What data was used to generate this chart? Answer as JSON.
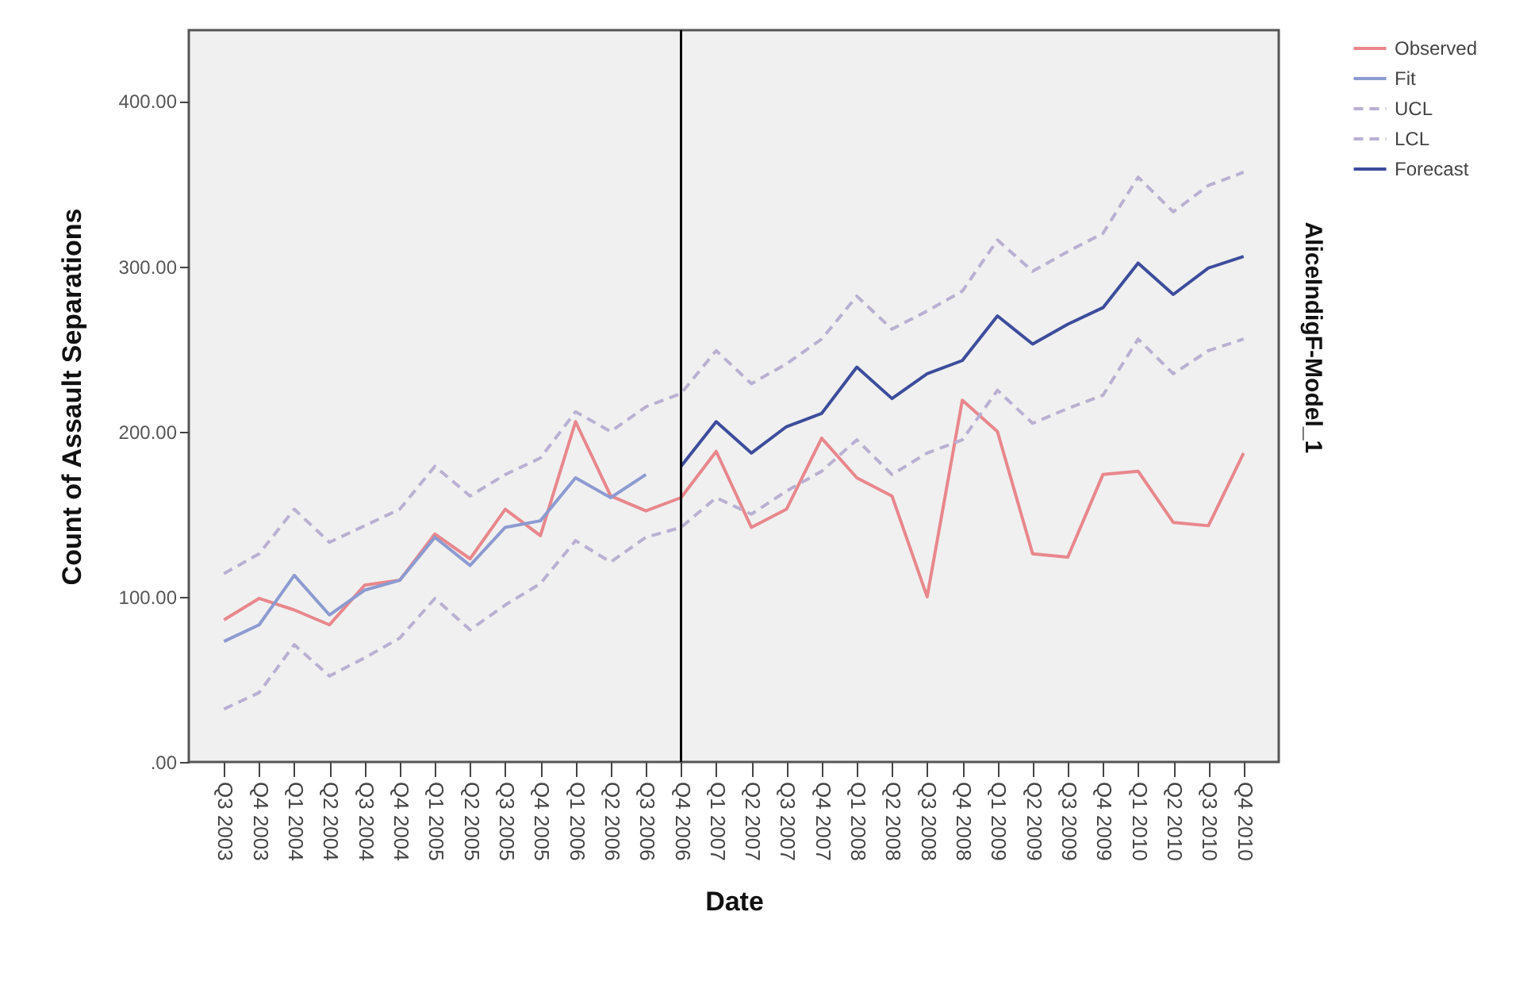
{
  "chart_data": {
    "type": "line",
    "xlabel": "Date",
    "ylabel": "Count of Assault Separations",
    "categories": [
      "Q3 2003",
      "Q4 2003",
      "Q1 2004",
      "Q2 2004",
      "Q3 2004",
      "Q4 2004",
      "Q1 2005",
      "Q2 2005",
      "Q3 2005",
      "Q4 2005",
      "Q1 2006",
      "Q2 2006",
      "Q3 2006",
      "Q4 2006",
      "Q1 2007",
      "Q2 2007",
      "Q3 2007",
      "Q4 2007",
      "Q1 2008",
      "Q2 2008",
      "Q3 2008",
      "Q4 2008",
      "Q1 2009",
      "Q2 2009",
      "Q3 2009",
      "Q4 2009",
      "Q1 2010",
      "Q2 2010",
      "Q3 2010",
      "Q4 2010"
    ],
    "series": [
      {
        "name": "Observed",
        "color": "#e8878c",
        "line_style": "solid",
        "values": [
          86,
          99,
          92,
          83,
          107,
          110,
          138,
          123,
          153,
          137,
          206,
          161,
          152,
          160,
          188,
          142,
          153,
          196,
          172,
          161,
          100,
          219,
          200,
          126,
          124,
          174,
          176,
          145,
          143,
          187
        ]
      },
      {
        "name": "Fit",
        "color": "#8c9bd0",
        "line_style": "solid",
        "values": [
          73,
          83,
          113,
          89,
          104,
          110,
          136,
          119,
          142,
          146,
          172,
          160,
          174,
          null,
          null,
          null,
          null,
          null,
          null,
          null,
          null,
          null,
          null,
          null,
          null,
          null,
          null,
          null,
          null,
          null
        ]
      },
      {
        "name": "UCL",
        "color": "#b9b0d2",
        "line_style": "dashed",
        "values": [
          114,
          126,
          153,
          133,
          143,
          153,
          179,
          161,
          174,
          184,
          212,
          200,
          215,
          223,
          249,
          229,
          241,
          256,
          282,
          262,
          273,
          285,
          316,
          297,
          309,
          320,
          354,
          333,
          349,
          357
        ]
      },
      {
        "name": "LCL",
        "color": "#b9b0d2",
        "line_style": "dashed",
        "values": [
          32,
          42,
          71,
          52,
          63,
          75,
          99,
          80,
          95,
          108,
          134,
          121,
          136,
          142,
          160,
          150,
          164,
          176,
          195,
          174,
          187,
          195,
          225,
          205,
          214,
          222,
          256,
          235,
          249,
          256
        ]
      },
      {
        "name": "Forecast",
        "color": "#3d4d9c",
        "line_style": "solid",
        "values": [
          null,
          null,
          null,
          null,
          null,
          null,
          null,
          null,
          null,
          null,
          null,
          null,
          null,
          179,
          206,
          187,
          203,
          211,
          239,
          220,
          235,
          243,
          270,
          253,
          265,
          275,
          302,
          283,
          299,
          306
        ]
      }
    ],
    "ylim": [
      0,
      443
    ],
    "yticks": [
      {
        "value": 0,
        "label": ".00"
      },
      {
        "value": 100,
        "label": "100.00"
      },
      {
        "value": 200,
        "label": "200.00"
      },
      {
        "value": 300,
        "label": "300.00"
      },
      {
        "value": 400,
        "label": "400.00"
      }
    ],
    "ref_lines": [
      {
        "axis": "x",
        "value": "Q4 2006",
        "color": "#000000"
      }
    ],
    "annotations": [
      "AliceIndigF-Model_1"
    ],
    "legend": "top right"
  }
}
